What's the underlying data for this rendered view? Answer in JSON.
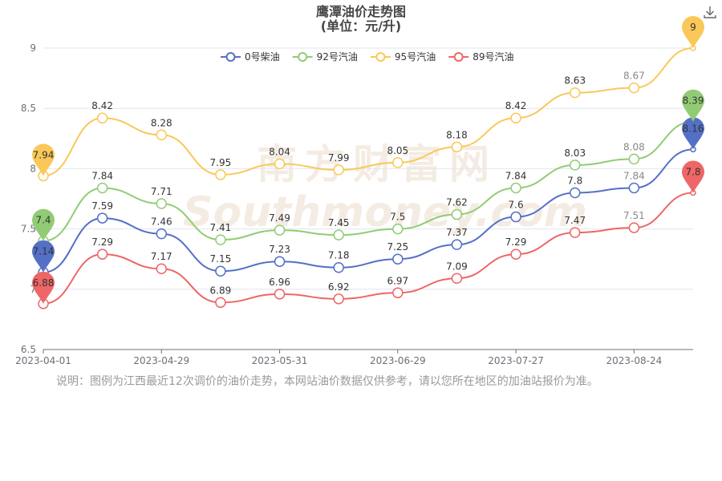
{
  "title_line1": "鹰潭油价走势图",
  "title_line2": "(单位：元/升)",
  "note": "说明：图例为江西最近12次调价的油价走势，本网站油价数据仅供参考，请以您所在地区的加油站报价为准。",
  "watermark": {
    "cn": "南方财富网",
    "en": "Southmoney.com"
  },
  "toolbar": {
    "download_icon": "download-icon"
  },
  "chart_data": {
    "type": "line",
    "ylim": [
      6.5,
      9
    ],
    "yticks": [
      6.5,
      7,
      7.5,
      8,
      8.5,
      9
    ],
    "ytick_labels": [
      "6.5",
      "7",
      "7.5",
      "8",
      "8.5",
      "9"
    ],
    "xticks": [
      "2023-04-01",
      "2023-04-29",
      "2023-05-31",
      "2023-06-29",
      "2023-07-27",
      "2023-08-24"
    ],
    "grid": true,
    "legend_position": "top-center",
    "series": [
      {
        "name": "0号柴油",
        "color": "#5470c6",
        "values": [
          7.14,
          7.59,
          7.46,
          7.15,
          7.23,
          7.18,
          7.25,
          7.37,
          7.6,
          7.8,
          7.84,
          8.16
        ],
        "labels": [
          "",
          "7.59",
          "7.46",
          "7.15",
          "7.23",
          "7.18",
          "7.25",
          "7.37",
          "7.6",
          "7.8",
          "7.84",
          ""
        ],
        "pins": [
          {
            "index": 0,
            "label": "7.14"
          },
          {
            "index": 11,
            "label": "8.16"
          }
        ]
      },
      {
        "name": "92号汽油",
        "color": "#91cc75",
        "values": [
          7.4,
          7.84,
          7.71,
          7.41,
          7.49,
          7.45,
          7.5,
          7.62,
          7.84,
          8.03,
          8.08,
          8.39
        ],
        "labels": [
          "",
          "7.84",
          "7.71",
          "7.41",
          "7.49",
          "7.45",
          "7.5",
          "7.62",
          "7.84",
          "8.03",
          "8.08",
          ""
        ],
        "pins": [
          {
            "index": 0,
            "label": "7.4"
          },
          {
            "index": 11,
            "label": "8.39"
          }
        ]
      },
      {
        "name": "95号汽油",
        "color": "#fac858",
        "values": [
          7.94,
          8.42,
          8.28,
          7.95,
          8.04,
          7.99,
          8.05,
          8.18,
          8.42,
          8.63,
          8.67,
          9.0
        ],
        "labels": [
          "",
          "8.42",
          "8.28",
          "7.95",
          "8.04",
          "7.99",
          "8.05",
          "8.18",
          "8.42",
          "8.63",
          "8.67",
          ""
        ],
        "pins": [
          {
            "index": 0,
            "label": "7.94"
          },
          {
            "index": 11,
            "label": "9"
          }
        ]
      },
      {
        "name": "89号汽油",
        "color": "#ee6666",
        "values": [
          6.88,
          7.29,
          7.17,
          6.89,
          6.96,
          6.92,
          6.97,
          7.09,
          7.29,
          7.47,
          7.51,
          7.8
        ],
        "labels": [
          "",
          "7.29",
          "7.17",
          "6.89",
          "6.96",
          "6.92",
          "6.97",
          "7.09",
          "7.29",
          "7.47",
          "7.51",
          ""
        ],
        "pins": [
          {
            "index": 0,
            "label": "6.88"
          },
          {
            "index": 11,
            "label": "7.8"
          }
        ]
      }
    ]
  }
}
